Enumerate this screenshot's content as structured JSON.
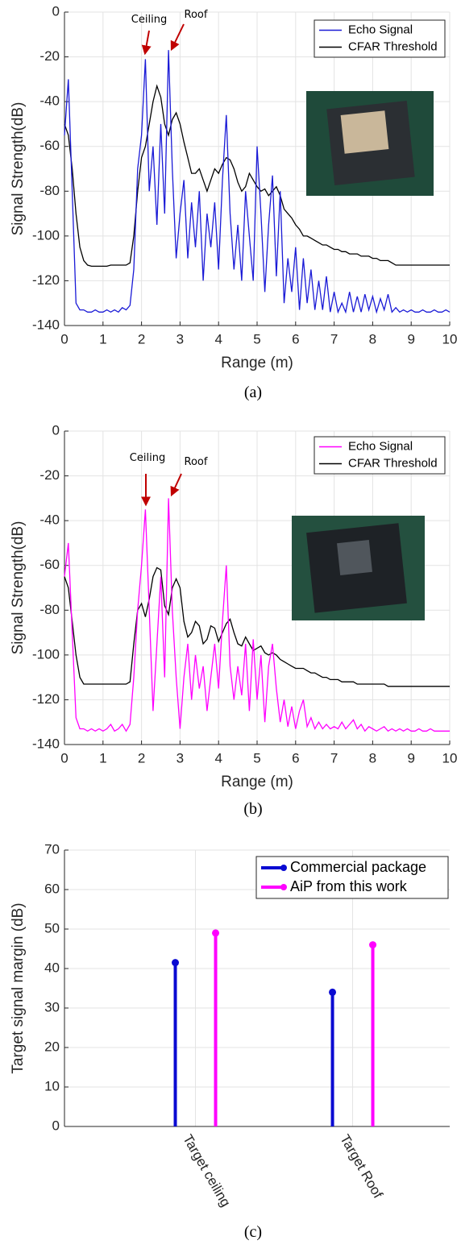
{
  "chart_data": [
    {
      "type": "line",
      "x_label": "Range (m)",
      "y_label": "Signal Strength(dB)",
      "caption": "(a)",
      "annotations": [
        "Ceiling",
        "Roof"
      ],
      "xlim": [
        0,
        10
      ],
      "ylim": [
        -140,
        0
      ],
      "xticks": [
        0,
        1,
        2,
        3,
        4,
        5,
        6,
        7,
        8,
        9,
        10
      ],
      "yticks": [
        0,
        -20,
        -40,
        -60,
        -80,
        -100,
        -120,
        -140
      ],
      "grid": true,
      "legend": "upper right",
      "x": [
        0,
        0.1,
        0.2,
        0.3,
        0.4,
        0.5,
        0.6,
        0.7,
        0.8,
        0.9,
        1,
        1.1,
        1.2,
        1.3,
        1.4,
        1.5,
        1.6,
        1.7,
        1.8,
        1.9,
        2,
        2.1,
        2.2,
        2.3,
        2.4,
        2.5,
        2.6,
        2.7,
        2.8,
        2.9,
        3,
        3.1,
        3.2,
        3.3,
        3.4,
        3.5,
        3.6,
        3.7,
        3.8,
        3.9,
        4,
        4.1,
        4.2,
        4.3,
        4.4,
        4.5,
        4.6,
        4.7,
        4.8,
        4.9,
        5,
        5.1,
        5.2,
        5.3,
        5.4,
        5.5,
        5.6,
        5.7,
        5.8,
        5.9,
        6,
        6.1,
        6.2,
        6.3,
        6.4,
        6.5,
        6.6,
        6.7,
        6.8,
        6.9,
        7,
        7.1,
        7.2,
        7.3,
        7.4,
        7.5,
        7.6,
        7.7,
        7.8,
        7.9,
        8,
        8.1,
        8.2,
        8.3,
        8.4,
        8.5,
        8.6,
        8.7,
        8.8,
        8.9,
        9,
        9.1,
        9.2,
        9.3,
        9.4,
        9.5,
        9.6,
        9.7,
        9.8,
        9.9,
        10
      ],
      "series": [
        {
          "name": "Echo Signal",
          "color": "#1a1ad6",
          "values": [
            -55,
            -30,
            -80,
            -130,
            -133,
            -133,
            -134,
            -134,
            -133,
            -134,
            -134,
            -133,
            -134,
            -133,
            -134,
            -132,
            -133,
            -131,
            -115,
            -70,
            -55,
            -21,
            -80,
            -60,
            -95,
            -50,
            -90,
            -17,
            -70,
            -110,
            -90,
            -75,
            -110,
            -85,
            -105,
            -80,
            -120,
            -90,
            -105,
            -85,
            -115,
            -75,
            -46,
            -90,
            -115,
            -95,
            -120,
            -80,
            -100,
            -120,
            -60,
            -90,
            -125,
            -95,
            -73,
            -118,
            -80,
            -130,
            -110,
            -125,
            -105,
            -133,
            -110,
            -130,
            -115,
            -133,
            -120,
            -133,
            -118,
            -134,
            -125,
            -134,
            -130,
            -134,
            -125,
            -134,
            -127,
            -134,
            -126,
            -133,
            -127,
            -134,
            -128,
            -133,
            -126,
            -134,
            -132,
            -134,
            -133,
            -134,
            -133,
            -134,
            -134,
            -133,
            -134,
            -134,
            -133,
            -134,
            -134,
            -133,
            -134
          ]
        },
        {
          "name": "CFAR Threshold",
          "color": "#000000",
          "values": [
            -50,
            -55,
            -70,
            -90,
            -105,
            -111,
            -113,
            -113.5,
            -113.5,
            -113.5,
            -113.5,
            -113.5,
            -113,
            -113,
            -113,
            -113,
            -113,
            -112,
            -100,
            -80,
            -65,
            -60,
            -50,
            -40,
            -33,
            -38,
            -50,
            -55,
            -48,
            -45,
            -50,
            -58,
            -65,
            -72,
            -72,
            -70,
            -75,
            -80,
            -75,
            -70,
            -72,
            -68,
            -65,
            -66,
            -70,
            -76,
            -80,
            -78,
            -72,
            -75,
            -78,
            -80,
            -79,
            -82,
            -80,
            -78,
            -82,
            -88,
            -90,
            -92,
            -95,
            -97,
            -100,
            -100,
            -101,
            -102,
            -103,
            -104,
            -104,
            -105,
            -106,
            -106,
            -107,
            -107,
            -108,
            -108,
            -108,
            -109,
            -109,
            -109,
            -110,
            -110,
            -111,
            -111,
            -111,
            -112,
            -113,
            -113,
            -113,
            -113,
            -113,
            -113,
            -113,
            -113,
            -113,
            -113,
            -113,
            -113,
            -113,
            -113,
            -113
          ]
        }
      ]
    },
    {
      "type": "line",
      "x_label": "Range (m)",
      "y_label": "Signal Strength(dB)",
      "caption": "(b)",
      "annotations": [
        "Ceiling",
        "Roof"
      ],
      "xlim": [
        0,
        10
      ],
      "ylim": [
        -140,
        0
      ],
      "xticks": [
        0,
        1,
        2,
        3,
        4,
        5,
        6,
        7,
        8,
        9,
        10
      ],
      "yticks": [
        0,
        -20,
        -40,
        -60,
        -80,
        -100,
        -120,
        -140
      ],
      "grid": true,
      "legend": "upper right",
      "x": [
        0,
        0.1,
        0.2,
        0.3,
        0.4,
        0.5,
        0.6,
        0.7,
        0.8,
        0.9,
        1,
        1.1,
        1.2,
        1.3,
        1.4,
        1.5,
        1.6,
        1.7,
        1.8,
        1.9,
        2,
        2.1,
        2.2,
        2.3,
        2.4,
        2.5,
        2.6,
        2.7,
        2.8,
        2.9,
        3,
        3.1,
        3.2,
        3.3,
        3.4,
        3.5,
        3.6,
        3.7,
        3.8,
        3.9,
        4,
        4.1,
        4.2,
        4.3,
        4.4,
        4.5,
        4.6,
        4.7,
        4.8,
        4.9,
        5,
        5.1,
        5.2,
        5.3,
        5.4,
        5.5,
        5.6,
        5.7,
        5.8,
        5.9,
        6,
        6.1,
        6.2,
        6.3,
        6.4,
        6.5,
        6.6,
        6.7,
        6.8,
        6.9,
        7,
        7.1,
        7.2,
        7.3,
        7.4,
        7.5,
        7.6,
        7.7,
        7.8,
        7.9,
        8,
        8.1,
        8.2,
        8.3,
        8.4,
        8.5,
        8.6,
        8.7,
        8.8,
        8.9,
        9,
        9.1,
        9.2,
        9.3,
        9.4,
        9.5,
        9.6,
        9.7,
        9.8,
        9.9,
        10
      ],
      "series": [
        {
          "name": "Echo Signal",
          "color": "#ff00ff",
          "values": [
            -65,
            -50,
            -90,
            -128,
            -133,
            -133,
            -134,
            -133,
            -134,
            -133,
            -134,
            -133,
            -131,
            -134,
            -133,
            -131,
            -134,
            -131,
            -110,
            -80,
            -60,
            -35,
            -80,
            -125,
            -95,
            -65,
            -110,
            -30,
            -80,
            -110,
            -133,
            -110,
            -95,
            -120,
            -100,
            -115,
            -105,
            -125,
            -110,
            -95,
            -115,
            -85,
            -60,
            -105,
            -120,
            -105,
            -118,
            -95,
            -125,
            -93,
            -120,
            -100,
            -130,
            -105,
            -95,
            -115,
            -130,
            -120,
            -132,
            -123,
            -133,
            -125,
            -120,
            -132,
            -128,
            -133,
            -130,
            -133,
            -131,
            -133,
            -132,
            -133,
            -130,
            -133,
            -131,
            -129,
            -133,
            -131,
            -134,
            -132,
            -133,
            -134,
            -133,
            -132,
            -134,
            -133,
            -134,
            -133,
            -134,
            -133,
            -134,
            -134,
            -133,
            -134,
            -134,
            -133,
            -134,
            -134,
            -134,
            -134,
            -134
          ]
        },
        {
          "name": "CFAR Threshold",
          "color": "#000000",
          "values": [
            -65,
            -70,
            -85,
            -100,
            -110,
            -113,
            -113,
            -113,
            -113,
            -113,
            -113,
            -113,
            -113,
            -113,
            -113,
            -113,
            -113,
            -112,
            -95,
            -80,
            -77,
            -83,
            -75,
            -65,
            -61,
            -62,
            -78,
            -82,
            -70,
            -66,
            -70,
            -85,
            -92,
            -90,
            -85,
            -87,
            -95,
            -93,
            -87,
            -88,
            -94,
            -90,
            -86,
            -84,
            -90,
            -95,
            -96,
            -92,
            -95,
            -98,
            -97,
            -96,
            -99,
            -100,
            -99,
            -100,
            -102,
            -103,
            -104,
            -105,
            -106,
            -106,
            -106,
            -107,
            -108,
            -108,
            -109,
            -110,
            -110,
            -111,
            -111,
            -111,
            -112,
            -112,
            -112,
            -112,
            -113,
            -113,
            -113,
            -113,
            -113,
            -113,
            -113,
            -113,
            -114,
            -114,
            -114,
            -114,
            -114,
            -114,
            -114,
            -114,
            -114,
            -114,
            -114,
            -114,
            -114,
            -114,
            -114,
            -114,
            -114
          ]
        }
      ]
    },
    {
      "type": "stem",
      "y_label": "Target signal margin (dB)",
      "caption": "(c)",
      "categories": [
        "Target ceiling",
        "Target Roof"
      ],
      "ylim": [
        0,
        70
      ],
      "yticks": [
        0,
        10,
        20,
        30,
        40,
        50,
        60,
        70
      ],
      "grid": true,
      "legend": "upper right",
      "series": [
        {
          "name": "Commercial package",
          "color": "#0a0ad2",
          "values": [
            41.5,
            34
          ]
        },
        {
          "name": "AiP from this work",
          "color": "#ff00ff",
          "values": [
            49,
            46
          ]
        }
      ]
    }
  ]
}
